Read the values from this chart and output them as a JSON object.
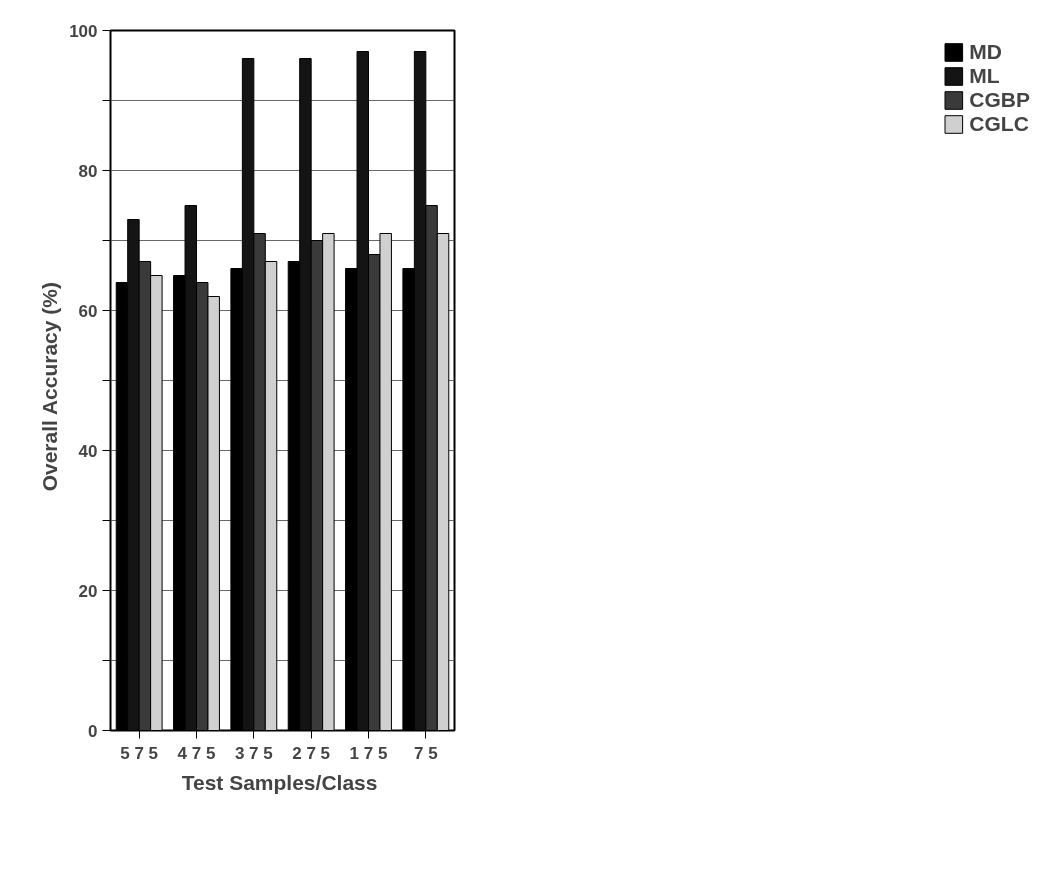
{
  "chart_data": {
    "type": "bar",
    "xlabel": "Test  Samples/Class",
    "ylabel": "Overall  Accuracy  (%)",
    "categories": [
      "5 7 5",
      "4 7 5",
      "3 7 5",
      "2 7 5",
      "1 7 5",
      "7 5"
    ],
    "series": [
      {
        "name": "MD",
        "color": "#000000",
        "values": [
          64,
          65,
          66,
          67,
          66,
          66
        ]
      },
      {
        "name": "ML",
        "color": "#141414",
        "values": [
          73,
          75,
          96,
          96,
          97,
          97
        ]
      },
      {
        "name": "CGBP",
        "color": "#3a3a3a",
        "values": [
          67,
          64,
          71,
          70,
          68,
          75
        ]
      },
      {
        "name": "CGLC",
        "color": "#d0d0d0",
        "values": [
          65,
          62,
          67,
          71,
          71,
          71
        ]
      }
    ],
    "ylim": [
      0,
      100
    ],
    "yticks": [
      0,
      {
        "value": 10,
        "label": null
      },
      20,
      {
        "value": 30,
        "label": null
      },
      40,
      {
        "value": 50,
        "label": null
      },
      60,
      {
        "value": 70,
        "label": null
      },
      80,
      {
        "value": 90,
        "label": null
      },
      100
    ],
    "grid": "y",
    "legend": "right"
  }
}
